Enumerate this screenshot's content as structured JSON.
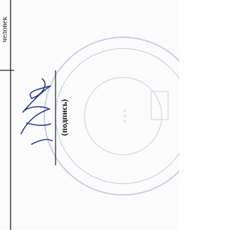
{
  "table": {
    "unit": "человек"
  },
  "signature": {
    "caption": "(подпись)"
  }
}
